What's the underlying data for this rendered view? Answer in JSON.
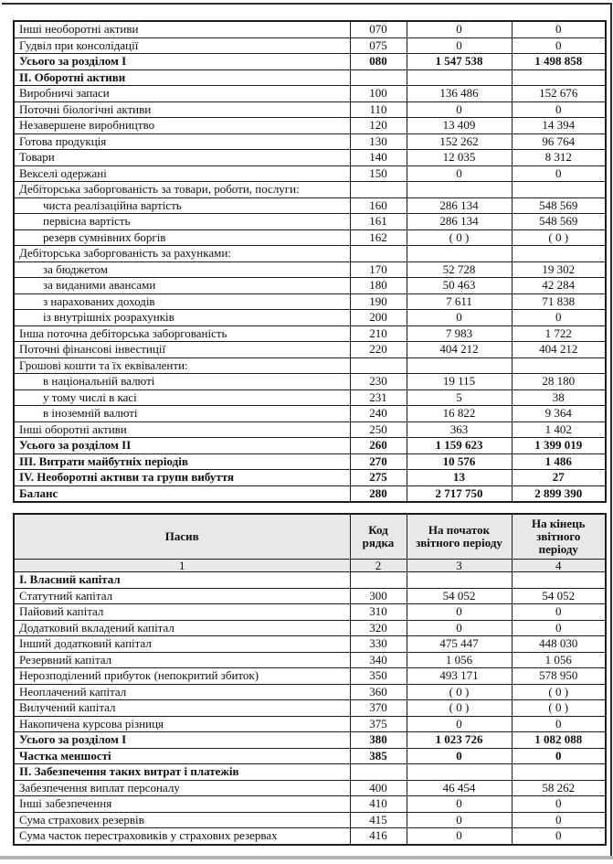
{
  "colors": {
    "header_bg": "#e8e8e8",
    "table_border": "#1c1c1c",
    "page_bottom_edge": "#b3b3b3"
  },
  "table1": {
    "rows": [
      {
        "style": "normal",
        "label": "Інші необоротні активи",
        "code": "070",
        "v1": "0",
        "v2": "0"
      },
      {
        "style": "normal",
        "label": "Гудвіл при консолідації",
        "code": "075",
        "v1": "0",
        "v2": "0"
      },
      {
        "style": "bold",
        "label": "Усього за розділом I",
        "code": "080",
        "v1": "1 547 538",
        "v2": "1 498 858"
      },
      {
        "style": "section",
        "label": "II. Оборотні активи",
        "code": "",
        "v1": "",
        "v2": ""
      },
      {
        "style": "normal",
        "label": "Виробничі запаси",
        "code": "100",
        "v1": "136 486",
        "v2": "152 676"
      },
      {
        "style": "normal",
        "label": "Поточні біологічні активи",
        "code": "110",
        "v1": "0",
        "v2": "0"
      },
      {
        "style": "normal",
        "label": "Незавершене виробництво",
        "code": "120",
        "v1": "13 409",
        "v2": "14 394"
      },
      {
        "style": "normal",
        "label": "Готова продукція",
        "code": "130",
        "v1": "152 262",
        "v2": "96 764"
      },
      {
        "style": "normal",
        "label": "Товари",
        "code": "140",
        "v1": "12 035",
        "v2": "8 312"
      },
      {
        "style": "normal",
        "label": "Векселі одержані",
        "code": "150",
        "v1": "0",
        "v2": "0"
      },
      {
        "style": "normal",
        "label": "Дебіторська заборгованість за товари, роботи, послуги:",
        "code": "",
        "v1": "",
        "v2": ""
      },
      {
        "style": "indent",
        "label": "чиста реалізаційна вартість",
        "code": "160",
        "v1": "286 134",
        "v2": "548 569"
      },
      {
        "style": "indent",
        "label": "первісна вартість",
        "code": "161",
        "v1": "286 134",
        "v2": "548 569"
      },
      {
        "style": "indent",
        "label": "резерв сумнівних боргів",
        "code": "162",
        "v1": "( 0 )",
        "v2": "( 0 )"
      },
      {
        "style": "normal",
        "label": "Дебіторська заборгованість за рахунками:",
        "code": "",
        "v1": "",
        "v2": ""
      },
      {
        "style": "indent",
        "label": "за бюджетом",
        "code": "170",
        "v1": "52 728",
        "v2": "19 302"
      },
      {
        "style": "indent",
        "label": "за виданими авансами",
        "code": "180",
        "v1": "50 463",
        "v2": "42 284"
      },
      {
        "style": "indent",
        "label": "з нарахованих доходів",
        "code": "190",
        "v1": "7 611",
        "v2": "71 838"
      },
      {
        "style": "indent",
        "label": "із внутрішніх розрахунків",
        "code": "200",
        "v1": "0",
        "v2": "0"
      },
      {
        "style": "normal",
        "label": "Інша поточна дебіторська заборгованість",
        "code": "210",
        "v1": "7 983",
        "v2": "1 722"
      },
      {
        "style": "normal",
        "label": "Поточні фінансові інвестиції",
        "code": "220",
        "v1": "404 212",
        "v2": "404 212"
      },
      {
        "style": "normal",
        "label": "Грошові кошти та їх еквіваленти:",
        "code": "",
        "v1": "",
        "v2": ""
      },
      {
        "style": "indent",
        "label": "в національній валюті",
        "code": "230",
        "v1": "19 115",
        "v2": "28 180"
      },
      {
        "style": "indent",
        "label": "у тому числі в касі",
        "code": "231",
        "v1": "5",
        "v2": "38"
      },
      {
        "style": "indent",
        "label": "в іноземній валюті",
        "code": "240",
        "v1": "16 822",
        "v2": "9 364"
      },
      {
        "style": "normal",
        "label": "Інші оборотні активи",
        "code": "250",
        "v1": "363",
        "v2": "1 402"
      },
      {
        "style": "bold",
        "label": "Усього за розділом II",
        "code": "260",
        "v1": "1 159 623",
        "v2": "1 399 019"
      },
      {
        "style": "bold",
        "label": "III. Витрати майбутніх періодів",
        "code": "270",
        "v1": "10 576",
        "v2": "1 486"
      },
      {
        "style": "bold",
        "label": "IV. Необоротні активи та групи вибуття",
        "code": "275",
        "v1": "13",
        "v2": "27"
      },
      {
        "style": "bold",
        "label": "Баланс",
        "code": "280",
        "v1": "2 717 750",
        "v2": "2 899 390"
      }
    ]
  },
  "table2": {
    "header": {
      "col1": "Пасив",
      "col2": "Код рядка",
      "col3": "На початок звітного періоду",
      "col4": "На кінець звітного періоду"
    },
    "numbering": [
      "1",
      "2",
      "3",
      "4"
    ],
    "rows": [
      {
        "style": "section",
        "label": "I. Власний капітал",
        "code": "",
        "v1": "",
        "v2": ""
      },
      {
        "style": "normal",
        "label": "Статутний капітал",
        "code": "300",
        "v1": "54 052",
        "v2": "54 052"
      },
      {
        "style": "normal",
        "label": "Пайовий капітал",
        "code": "310",
        "v1": "0",
        "v2": "0"
      },
      {
        "style": "normal",
        "label": "Додатковий вкладений капітал",
        "code": "320",
        "v1": "0",
        "v2": "0"
      },
      {
        "style": "normal",
        "label": "Інший додатковий капітал",
        "code": "330",
        "v1": "475 447",
        "v2": "448 030"
      },
      {
        "style": "normal",
        "label": "Резервний капітал",
        "code": "340",
        "v1": "1 056",
        "v2": "1 056"
      },
      {
        "style": "normal",
        "label": "Нерозподілений прибуток (непокритий збиток)",
        "code": "350",
        "v1": "493 171",
        "v2": "578 950"
      },
      {
        "style": "normal",
        "label": "Неоплачений капітал",
        "code": "360",
        "v1": "( 0 )",
        "v2": "( 0 )"
      },
      {
        "style": "normal",
        "label": "Вилучений капітал",
        "code": "370",
        "v1": "( 0 )",
        "v2": "( 0 )"
      },
      {
        "style": "normal",
        "label": "Накопичена курсова різниця",
        "code": "375",
        "v1": "0",
        "v2": "0"
      },
      {
        "style": "bold",
        "label": "Усього за розділом I",
        "code": "380",
        "v1": "1 023 726",
        "v2": "1 082 088"
      },
      {
        "style": "bold",
        "label": "Частка меншості",
        "code": "385",
        "v1": "0",
        "v2": "0"
      },
      {
        "style": "section",
        "label": "II. Забезпечення таких витрат і платежів",
        "code": "",
        "v1": "",
        "v2": ""
      },
      {
        "style": "normal",
        "label": "Забезпечення виплат персоналу",
        "code": "400",
        "v1": "46 454",
        "v2": "58 262"
      },
      {
        "style": "normal",
        "label": "Інші забезпечення",
        "code": "410",
        "v1": "0",
        "v2": "0"
      },
      {
        "style": "normal",
        "label": "Сума страхових резервів",
        "code": "415",
        "v1": "0",
        "v2": "0"
      },
      {
        "style": "normal",
        "label": "Сума часток перестраховиків у страхових резервах",
        "code": "416",
        "v1": "0",
        "v2": "0"
      }
    ]
  }
}
